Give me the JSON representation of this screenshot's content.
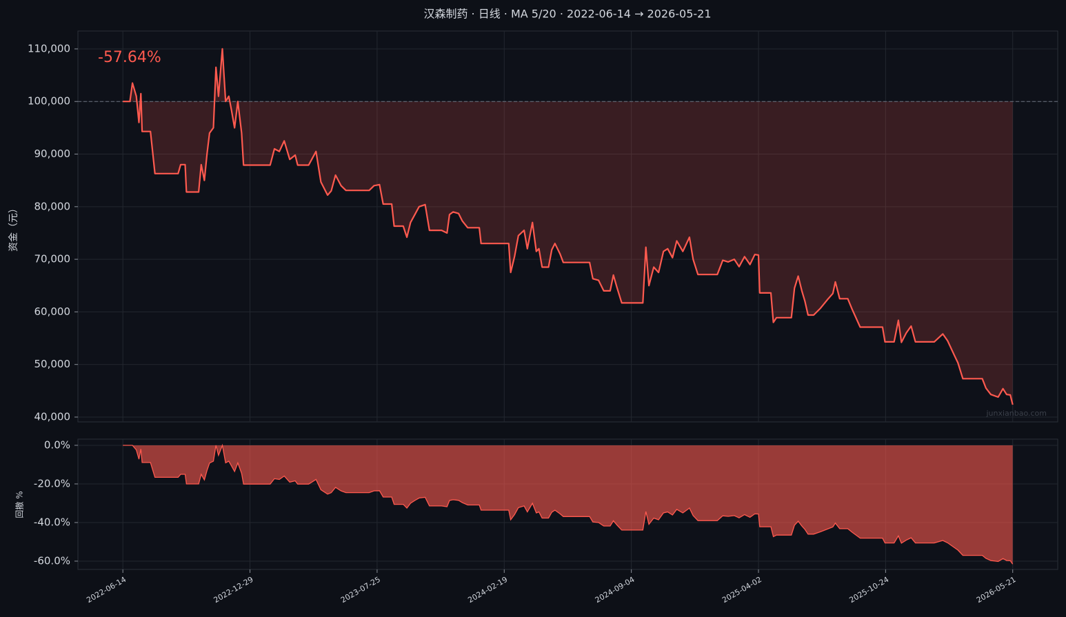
{
  "chart_data": [
    {
      "type": "line",
      "title": "汉森制药 · 日线 · MA 5/20 · 2022-06-14 → 2026-05-21",
      "ylabel": "资金（元）",
      "annotation": "-57.64%",
      "watermark": "junxianbao.com",
      "baseline": 100000,
      "color": "#ff5a4f",
      "grid": true,
      "xlim": [
        "2022-04-05",
        "2026-08-03"
      ],
      "xticks": [
        "2022-06-14",
        "2022-12-29",
        "2023-07-25",
        "2024-02-19",
        "2024-09-04",
        "2025-04-02",
        "2025-10-24",
        "2026-05-21"
      ],
      "ylim": [
        39080,
        113400
      ],
      "yticks": [
        {
          "value": 40000,
          "label": "40,000"
        },
        {
          "value": 50000,
          "label": "50,000"
        },
        {
          "value": 60000,
          "label": "60,000"
        },
        {
          "value": 70000,
          "label": "70,000"
        },
        {
          "value": 80000,
          "label": "80,000"
        },
        {
          "value": 90000,
          "label": "90,000"
        },
        {
          "value": 100000,
          "label": "100,000"
        },
        {
          "value": 110000,
          "label": "110,000"
        }
      ],
      "x": [
        "2022-06-14",
        "2022-06-25",
        "2022-06-29",
        "2022-07-05",
        "2022-07-09",
        "2022-07-12",
        "2022-07-14",
        "2022-07-27",
        "2022-08-03",
        "2022-09-08",
        "2022-09-12",
        "2022-09-19",
        "2022-09-21",
        "2022-10-10",
        "2022-10-14",
        "2022-10-19",
        "2022-10-23",
        "2022-10-27",
        "2022-11-02",
        "2022-11-06",
        "2022-11-10",
        "2022-11-16",
        "2022-11-21",
        "2022-11-26",
        "2022-11-30",
        "2022-12-05",
        "2022-12-10",
        "2022-12-16",
        "2022-12-19",
        "2023-01-20",
        "2023-01-31",
        "2023-02-07",
        "2023-02-15",
        "2023-02-23",
        "2023-03-04",
        "2023-03-13",
        "2023-03-17",
        "2023-04-04",
        "2023-04-09",
        "2023-04-16",
        "2023-04-24",
        "2023-05-05",
        "2023-05-11",
        "2023-05-18",
        "2023-05-27",
        "2023-06-04",
        "2023-07-12",
        "2023-07-20",
        "2023-07-29",
        "2023-08-04",
        "2023-08-18",
        "2023-08-22",
        "2023-09-06",
        "2023-09-12",
        "2023-09-18",
        "2023-09-25",
        "2023-10-02",
        "2023-10-12",
        "2023-10-19",
        "2023-11-08",
        "2023-11-17",
        "2023-11-21",
        "2023-11-27",
        "2023-12-06",
        "2023-12-12",
        "2023-12-21",
        "2024-01-09",
        "2024-01-12",
        "2024-02-26",
        "2024-02-29",
        "2024-03-06",
        "2024-03-12",
        "2024-03-21",
        "2024-03-26",
        "2024-04-03",
        "2024-04-09",
        "2024-04-13",
        "2024-04-18",
        "2024-04-28",
        "2024-05-03",
        "2024-05-08",
        "2024-05-16",
        "2024-05-21",
        "2024-07-01",
        "2024-07-06",
        "2024-07-15",
        "2024-07-23",
        "2024-08-02",
        "2024-08-07",
        "2024-08-13",
        "2024-08-20",
        "2024-09-23",
        "2024-09-28",
        "2024-10-03",
        "2024-10-11",
        "2024-10-19",
        "2024-10-27",
        "2024-11-03",
        "2024-11-11",
        "2024-11-18",
        "2024-11-28",
        "2024-12-09",
        "2024-12-15",
        "2024-12-23",
        "2025-01-24",
        "2025-02-02",
        "2025-02-11",
        "2025-02-21",
        "2025-03-01",
        "2025-03-10",
        "2025-03-19",
        "2025-03-27",
        "2025-04-02",
        "2025-04-04",
        "2025-04-22",
        "2025-04-26",
        "2025-05-01",
        "2025-05-25",
        "2025-05-30",
        "2025-06-05",
        "2025-06-11",
        "2025-06-16",
        "2025-06-21",
        "2025-06-30",
        "2025-07-11",
        "2025-07-22",
        "2025-07-31",
        "2025-08-04",
        "2025-08-11",
        "2025-08-24",
        "2025-08-31",
        "2025-09-13",
        "2025-10-19",
        "2025-10-23",
        "2025-11-07",
        "2025-11-14",
        "2025-11-19",
        "2025-11-27",
        "2025-12-05",
        "2025-12-12",
        "2026-01-12",
        "2026-01-26",
        "2026-02-03",
        "2026-02-15",
        "2026-02-20",
        "2026-02-28",
        "2026-04-01",
        "2026-04-07",
        "2026-04-15",
        "2026-04-27",
        "2026-05-05",
        "2026-05-11",
        "2026-05-17",
        "2026-05-21"
      ],
      "values": [
        100000,
        100000,
        103500,
        101000,
        96000,
        101500,
        94300,
        94300,
        86300,
        86300,
        88000,
        88000,
        82800,
        82800,
        88000,
        85000,
        90000,
        94000,
        95000,
        106500,
        101000,
        110000,
        100000,
        101000,
        98500,
        95000,
        100000,
        94000,
        87900,
        87900,
        87900,
        91000,
        90500,
        92500,
        89000,
        89800,
        87900,
        87900,
        89000,
        90500,
        84700,
        82200,
        83000,
        86000,
        84000,
        83100,
        83100,
        84000,
        84200,
        80500,
        80500,
        76300,
        76300,
        74200,
        77000,
        78500,
        80000,
        80400,
        75500,
        75500,
        75000,
        78500,
        79000,
        78700,
        77300,
        76000,
        76000,
        73000,
        73000,
        67500,
        70500,
        74500,
        75500,
        72000,
        77000,
        71500,
        72000,
        68500,
        68500,
        71800,
        73000,
        71000,
        69400,
        69400,
        66300,
        66000,
        64000,
        64000,
        67000,
        64500,
        61700,
        61700,
        72300,
        65000,
        68500,
        67500,
        71500,
        72000,
        70300,
        73500,
        71500,
        74200,
        70000,
        67100,
        67100,
        69800,
        69500,
        70000,
        68600,
        70500,
        69000,
        70900,
        70800,
        63600,
        63600,
        58000,
        58900,
        58900,
        64500,
        66800,
        64000,
        62000,
        59400,
        59400,
        60700,
        62300,
        63500,
        65700,
        62500,
        62500,
        60500,
        57100,
        57100,
        54300,
        54300,
        58400,
        54200,
        56000,
        57300,
        54300,
        54300,
        55800,
        54500,
        51500,
        50300,
        47300,
        47300,
        45500,
        44300,
        43800,
        45400,
        44300,
        44200,
        42360
      ]
    },
    {
      "type": "area",
      "ylabel": "回撤 %",
      "color": "#ff5a4f",
      "grid": true,
      "xlim": [
        "2022-04-05",
        "2026-08-03"
      ],
      "xticks": [
        "2022-06-14",
        "2022-12-29",
        "2023-07-25",
        "2024-02-19",
        "2024-09-04",
        "2025-04-02",
        "2025-10-24",
        "2026-05-21"
      ],
      "ylim": [
        -64.3,
        3.2
      ],
      "yticks": [
        {
          "value": -60,
          "label": "-60.0%"
        },
        {
          "value": -40,
          "label": "-40.0%"
        },
        {
          "value": -20,
          "label": "-20.0%"
        },
        {
          "value": 0,
          "label": "0.0%"
        }
      ],
      "x": [
        "2022-06-14",
        "2022-06-25",
        "2022-06-29",
        "2022-07-05",
        "2022-07-09",
        "2022-07-12",
        "2022-07-14",
        "2022-07-27",
        "2022-08-03",
        "2022-09-08",
        "2022-09-12",
        "2022-09-19",
        "2022-09-21",
        "2022-10-10",
        "2022-10-14",
        "2022-10-19",
        "2022-10-23",
        "2022-10-27",
        "2022-11-02",
        "2022-11-06",
        "2022-11-10",
        "2022-11-16",
        "2022-11-21",
        "2022-11-26",
        "2022-11-30",
        "2022-12-05",
        "2022-12-10",
        "2022-12-16",
        "2022-12-19",
        "2023-01-20",
        "2023-01-31",
        "2023-02-07",
        "2023-02-15",
        "2023-02-23",
        "2023-03-04",
        "2023-03-13",
        "2023-03-17",
        "2023-04-04",
        "2023-04-09",
        "2023-04-16",
        "2023-04-24",
        "2023-05-05",
        "2023-05-11",
        "2023-05-18",
        "2023-05-27",
        "2023-06-04",
        "2023-07-12",
        "2023-07-20",
        "2023-07-29",
        "2023-08-04",
        "2023-08-18",
        "2023-08-22",
        "2023-09-06",
        "2023-09-12",
        "2023-09-18",
        "2023-09-25",
        "2023-10-02",
        "2023-10-12",
        "2023-10-19",
        "2023-11-08",
        "2023-11-17",
        "2023-11-21",
        "2023-11-27",
        "2023-12-06",
        "2023-12-12",
        "2023-12-21",
        "2024-01-09",
        "2024-01-12",
        "2024-02-26",
        "2024-02-29",
        "2024-03-06",
        "2024-03-12",
        "2024-03-21",
        "2024-03-26",
        "2024-04-03",
        "2024-04-09",
        "2024-04-13",
        "2024-04-18",
        "2024-04-28",
        "2024-05-03",
        "2024-05-08",
        "2024-05-16",
        "2024-05-21",
        "2024-07-01",
        "2024-07-06",
        "2024-07-15",
        "2024-07-23",
        "2024-08-02",
        "2024-08-07",
        "2024-08-13",
        "2024-08-20",
        "2024-09-23",
        "2024-09-28",
        "2024-10-03",
        "2024-10-11",
        "2024-10-19",
        "2024-10-27",
        "2024-11-03",
        "2024-11-11",
        "2024-11-18",
        "2024-11-28",
        "2024-12-09",
        "2024-12-15",
        "2024-12-23",
        "2025-01-24",
        "2025-02-02",
        "2025-02-11",
        "2025-02-21",
        "2025-03-01",
        "2025-03-10",
        "2025-03-19",
        "2025-03-27",
        "2025-04-02",
        "2025-04-04",
        "2025-04-22",
        "2025-04-26",
        "2025-05-01",
        "2025-05-25",
        "2025-05-30",
        "2025-06-05",
        "2025-06-11",
        "2025-06-16",
        "2025-06-21",
        "2025-06-30",
        "2025-07-11",
        "2025-07-22",
        "2025-07-31",
        "2025-08-04",
        "2025-08-11",
        "2025-08-24",
        "2025-08-31",
        "2025-09-13",
        "2025-10-19",
        "2025-10-23",
        "2025-11-07",
        "2025-11-14",
        "2025-11-19",
        "2025-11-27",
        "2025-12-05",
        "2025-12-12",
        "2026-01-12",
        "2026-01-26",
        "2026-02-03",
        "2026-02-15",
        "2026-02-20",
        "2026-02-28",
        "2026-04-01",
        "2026-04-07",
        "2026-04-15",
        "2026-04-27",
        "2026-05-05",
        "2026-05-11",
        "2026-05-17",
        "2026-05-21"
      ],
      "values": [
        0,
        0,
        0,
        -2.4,
        -7.2,
        -1.9,
        -8.9,
        -8.9,
        -16.6,
        -16.6,
        -15.0,
        -15.0,
        -20.0,
        -20.0,
        -15.0,
        -17.9,
        -13.0,
        -9.2,
        -8.2,
        0,
        -5.2,
        0,
        -9.1,
        -8.2,
        -10.5,
        -13.6,
        -9.1,
        -14.5,
        -20.1,
        -20.1,
        -20.1,
        -17.3,
        -17.7,
        -15.9,
        -19.1,
        -18.4,
        -20.1,
        -20.1,
        -19.1,
        -17.7,
        -23.0,
        -25.3,
        -24.5,
        -21.8,
        -23.6,
        -24.5,
        -24.5,
        -23.6,
        -23.5,
        -26.8,
        -26.8,
        -30.6,
        -30.6,
        -32.5,
        -30.0,
        -28.6,
        -27.3,
        -26.9,
        -31.4,
        -31.4,
        -31.8,
        -28.6,
        -28.2,
        -28.5,
        -29.7,
        -30.9,
        -30.9,
        -33.6,
        -33.6,
        -38.6,
        -35.9,
        -32.3,
        -31.4,
        -34.5,
        -30.0,
        -35.0,
        -34.5,
        -37.7,
        -37.7,
        -34.7,
        -33.6,
        -35.5,
        -36.9,
        -36.9,
        -39.7,
        -40.0,
        -41.8,
        -41.8,
        -39.1,
        -41.4,
        -43.9,
        -43.9,
        -34.3,
        -40.9,
        -37.7,
        -38.6,
        -35.0,
        -34.5,
        -36.1,
        -33.2,
        -35.0,
        -32.5,
        -36.4,
        -39.0,
        -39.0,
        -36.5,
        -36.8,
        -36.4,
        -37.6,
        -35.9,
        -37.3,
        -35.5,
        -35.6,
        -42.2,
        -42.2,
        -47.3,
        -46.5,
        -46.5,
        -41.4,
        -39.3,
        -41.8,
        -43.6,
        -46.0,
        -46.0,
        -44.8,
        -43.4,
        -42.3,
        -40.3,
        -43.2,
        -43.2,
        -45.0,
        -48.1,
        -48.1,
        -50.6,
        -50.6,
        -46.9,
        -50.7,
        -49.1,
        -47.9,
        -50.6,
        -50.6,
        -49.3,
        -50.5,
        -53.2,
        -54.3,
        -57.0,
        -57.0,
        -58.6,
        -59.7,
        -60.2,
        -58.7,
        -59.7,
        -59.8,
        -61.5
      ]
    }
  ]
}
